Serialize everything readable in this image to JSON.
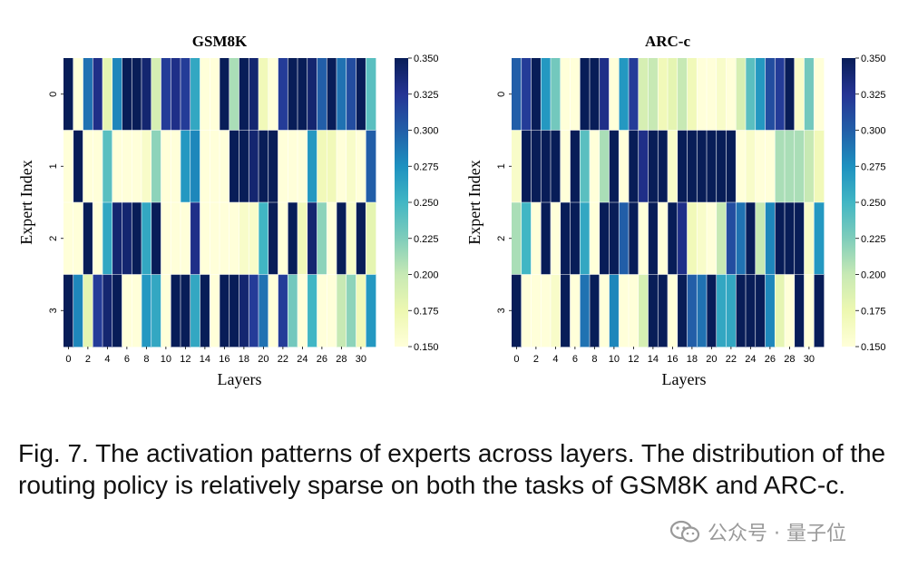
{
  "chart_data": [
    {
      "type": "heatmap",
      "title": "GSM8K",
      "xlabel": "Layers",
      "ylabel": "Expert Index",
      "x_tick_labels": [
        "0",
        "2",
        "4",
        "6",
        "8",
        "10",
        "12",
        "14",
        "16",
        "18",
        "20",
        "22",
        "24",
        "26",
        "28",
        "30"
      ],
      "y_tick_labels": [
        "0",
        "1",
        "2",
        "3"
      ],
      "colorbar": {
        "min": 0.15,
        "max": 0.35,
        "ticks": [
          "0.350",
          "0.325",
          "0.300",
          "0.275",
          "0.250",
          "0.225",
          "0.200",
          "0.175",
          "0.150"
        ],
        "colormap": [
          "#ffffd9",
          "#edf8b1",
          "#c7e9b4",
          "#7fcdbb",
          "#41b6c4",
          "#1d91c0",
          "#225ea8",
          "#253494",
          "#081d58"
        ]
      },
      "values": [
        [
          0.35,
          0.15,
          0.29,
          0.33,
          0.18,
          0.28,
          0.35,
          0.35,
          0.34,
          0.19,
          0.32,
          0.33,
          0.32,
          0.26,
          0.15,
          0.15,
          0.35,
          0.21,
          0.35,
          0.34,
          0.17,
          0.15,
          0.32,
          0.35,
          0.35,
          0.34,
          0.3,
          0.35,
          0.29,
          0.31,
          0.35,
          0.24
        ],
        [
          0.15,
          0.35,
          0.15,
          0.15,
          0.24,
          0.15,
          0.15,
          0.15,
          0.16,
          0.22,
          0.15,
          0.15,
          0.27,
          0.28,
          0.15,
          0.15,
          0.15,
          0.35,
          0.35,
          0.34,
          0.35,
          0.35,
          0.15,
          0.15,
          0.15,
          0.27,
          0.17,
          0.17,
          0.15,
          0.16,
          0.15,
          0.3
        ],
        [
          0.15,
          0.15,
          0.35,
          0.15,
          0.26,
          0.34,
          0.34,
          0.35,
          0.26,
          0.35,
          0.15,
          0.15,
          0.15,
          0.33,
          0.15,
          0.15,
          0.15,
          0.15,
          0.16,
          0.16,
          0.25,
          0.35,
          0.15,
          0.35,
          0.17,
          0.34,
          0.22,
          0.15,
          0.35,
          0.16,
          0.35,
          0.18
        ],
        [
          0.35,
          0.28,
          0.18,
          0.32,
          0.34,
          0.35,
          0.15,
          0.15,
          0.27,
          0.26,
          0.15,
          0.35,
          0.35,
          0.26,
          0.35,
          0.15,
          0.35,
          0.35,
          0.34,
          0.32,
          0.29,
          0.15,
          0.32,
          0.23,
          0.15,
          0.25,
          0.15,
          0.15,
          0.2,
          0.22,
          0.17,
          0.27
        ]
      ]
    },
    {
      "type": "heatmap",
      "title": "ARC-c",
      "xlabel": "Layers",
      "ylabel": "Expert Index",
      "x_tick_labels": [
        "0",
        "2",
        "4",
        "6",
        "8",
        "10",
        "12",
        "14",
        "16",
        "18",
        "20",
        "22",
        "24",
        "26",
        "28",
        "30"
      ],
      "y_tick_labels": [
        "0",
        "1",
        "2",
        "3"
      ],
      "colorbar": {
        "min": 0.15,
        "max": 0.35,
        "ticks": [
          "0.350",
          "0.325",
          "0.300",
          "0.275",
          "0.250",
          "0.225",
          "0.200",
          "0.175",
          "0.150"
        ],
        "colormap": [
          "#ffffd9",
          "#edf8b1",
          "#c7e9b4",
          "#7fcdbb",
          "#41b6c4",
          "#1d91c0",
          "#225ea8",
          "#253494",
          "#081d58"
        ]
      },
      "values": [
        [
          0.3,
          0.32,
          0.35,
          0.27,
          0.23,
          0.15,
          0.15,
          0.35,
          0.35,
          0.33,
          0.15,
          0.27,
          0.32,
          0.19,
          0.2,
          0.17,
          0.18,
          0.2,
          0.17,
          0.15,
          0.15,
          0.16,
          0.15,
          0.19,
          0.24,
          0.27,
          0.31,
          0.32,
          0.35,
          0.16,
          0.23,
          0.15
        ],
        [
          0.16,
          0.35,
          0.35,
          0.35,
          0.35,
          0.15,
          0.35,
          0.24,
          0.15,
          0.21,
          0.35,
          0.15,
          0.35,
          0.33,
          0.35,
          0.35,
          0.16,
          0.35,
          0.35,
          0.35,
          0.35,
          0.35,
          0.35,
          0.15,
          0.16,
          0.15,
          0.15,
          0.21,
          0.21,
          0.21,
          0.2,
          0.17
        ],
        [
          0.21,
          0.25,
          0.15,
          0.35,
          0.15,
          0.35,
          0.35,
          0.26,
          0.15,
          0.35,
          0.35,
          0.3,
          0.35,
          0.15,
          0.35,
          0.15,
          0.35,
          0.33,
          0.17,
          0.16,
          0.15,
          0.2,
          0.31,
          0.29,
          0.35,
          0.2,
          0.28,
          0.35,
          0.35,
          0.35,
          0.16,
          0.27
        ],
        [
          0.35,
          0.15,
          0.15,
          0.15,
          0.16,
          0.35,
          0.15,
          0.29,
          0.35,
          0.15,
          0.28,
          0.15,
          0.15,
          0.19,
          0.35,
          0.35,
          0.15,
          0.35,
          0.3,
          0.29,
          0.35,
          0.26,
          0.26,
          0.35,
          0.35,
          0.35,
          0.28,
          0.18,
          0.15,
          0.35,
          0.15,
          0.35
        ]
      ]
    }
  ],
  "caption": "Fig. 7. The activation patterns of experts across layers. The distribution of the routing policy is relatively sparse on both the tasks of GSM8K and ARC-c.",
  "watermark": {
    "text": "公众号 · 量子位",
    "icon": "wechat-icon"
  }
}
